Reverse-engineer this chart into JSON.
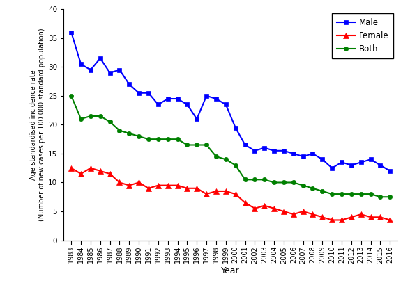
{
  "years": [
    1983,
    1984,
    1985,
    1986,
    1987,
    1988,
    1989,
    1990,
    1991,
    1992,
    1993,
    1994,
    1995,
    1996,
    1997,
    1998,
    1999,
    2000,
    2001,
    2002,
    2003,
    2004,
    2005,
    2006,
    2007,
    2008,
    2009,
    2010,
    2011,
    2012,
    2013,
    2014,
    2015,
    2016
  ],
  "male": [
    36.0,
    30.5,
    29.5,
    31.5,
    29.0,
    29.5,
    27.0,
    25.5,
    25.5,
    23.5,
    24.5,
    24.5,
    23.5,
    21.0,
    25.0,
    24.5,
    23.5,
    19.5,
    16.5,
    15.5,
    16.0,
    15.5,
    15.5,
    15.0,
    14.5,
    15.0,
    14.0,
    12.5,
    13.5,
    13.0,
    13.5,
    14.0,
    13.0,
    12.0
  ],
  "female": [
    12.5,
    11.5,
    12.5,
    12.0,
    11.5,
    10.0,
    9.5,
    10.0,
    9.0,
    9.5,
    9.5,
    9.5,
    9.0,
    9.0,
    8.0,
    8.5,
    8.5,
    8.0,
    6.5,
    5.5,
    6.0,
    5.5,
    5.0,
    4.5,
    5.0,
    4.5,
    4.0,
    3.5,
    3.5,
    4.0,
    4.5,
    4.0,
    4.0,
    3.5
  ],
  "both": [
    25.0,
    21.0,
    21.5,
    21.5,
    20.5,
    19.0,
    18.5,
    18.0,
    17.5,
    17.5,
    17.5,
    17.5,
    16.5,
    16.5,
    16.5,
    14.5,
    14.0,
    13.0,
    10.5,
    10.5,
    10.5,
    10.0,
    10.0,
    10.0,
    9.5,
    9.0,
    8.5,
    8.0,
    8.0,
    8.0,
    8.0,
    8.0,
    7.5,
    7.5
  ],
  "male_color": "#0000FF",
  "female_color": "#FF0000",
  "both_color": "#008000",
  "ylabel_line1": "Age-standardised incidence rate",
  "ylabel_line2": "(Number of new cases per 100 000 standard population)",
  "xlabel": "Year",
  "ylim": [
    0,
    40
  ],
  "yticks": [
    0,
    5,
    10,
    15,
    20,
    25,
    30,
    35,
    40
  ],
  "legend_labels": [
    "Male",
    "Female",
    "Both"
  ],
  "background_color": "#FFFFFF",
  "tick_fontsize": 7,
  "label_fontsize": 8,
  "legend_fontsize": 8.5,
  "linewidth": 1.5,
  "marker_size_sq": 4.5,
  "marker_size_tri": 5.5,
  "marker_size_circ": 4.5
}
